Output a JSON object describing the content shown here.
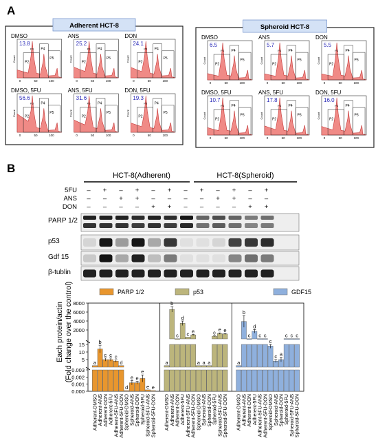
{
  "panel_a": {
    "letter": "A",
    "adherent_title": "Adherent HCT-8",
    "spheroid_title": "Spheroid HCT-8",
    "hist_axis": {
      "ylabel": "Count",
      "xticks": [
        "0",
        "50",
        "100"
      ],
      "gates": [
        "P2",
        "P3",
        "P4",
        "P5"
      ]
    },
    "adherent": [
      {
        "label": "DMSO",
        "value": "13.8"
      },
      {
        "label": "ANS",
        "value": "25.2"
      },
      {
        "label": "DON",
        "value": "24.1"
      },
      {
        "label": "DMSO, 5FU",
        "value": "56.6"
      },
      {
        "label": "ANS, 5FU",
        "value": "31.6"
      },
      {
        "label": "DON, 5FU",
        "value": "19.3"
      }
    ],
    "spheroid": [
      {
        "label": "DMSO",
        "value": "6.5"
      },
      {
        "label": "ANS",
        "value": "5.7"
      },
      {
        "label": "DON",
        "value": "5.5"
      },
      {
        "label": "DMSO, 5FU",
        "value": "10.7"
      },
      {
        "label": "ANS, 5FU",
        "value": "17.8"
      },
      {
        "label": "DON, 5FU",
        "value": "16.0"
      }
    ]
  },
  "panel_b": {
    "letter": "B",
    "group_adherent": "HCT-8(Adherent)",
    "group_spheroid": "HCT-8(Spheroid)",
    "treatments": [
      {
        "name": "5FU",
        "marks": [
          "–",
          "+",
          "–",
          "+",
          "–",
          "+",
          "–",
          "+",
          "–",
          "+",
          "–",
          "+"
        ]
      },
      {
        "name": "ANS",
        "marks": [
          "–",
          "–",
          "+",
          "+",
          "–",
          "–",
          "–",
          "–",
          "+",
          "+",
          "–",
          "–"
        ]
      },
      {
        "name": "DON",
        "marks": [
          "–",
          "–",
          "–",
          "–",
          "+",
          "+",
          "–",
          "–",
          "–",
          "–",
          "+",
          "+"
        ]
      }
    ],
    "blots": [
      {
        "label": "PARP 1/2"
      },
      {
        "label": "p53"
      },
      {
        "label": "Gdf 15"
      },
      {
        "label": "β-tublin"
      }
    ]
  },
  "chart_data": {
    "type": "bar",
    "ylabel": "Each protein/actin",
    "ylabel2": "(Fold change over the control)",
    "categories": [
      "Adherent-DMSO",
      "Adherent-ANS",
      "Adherent-DON",
      "Adherent-5FU",
      "Adherent-5FU-ANS",
      "Adherent-5FU-DON",
      "Spheroid-DMSO",
      "Spheroid-ANS",
      "Spheroid-DON",
      "Spheroid-5FU",
      "Spheroid-5FU-ANS",
      "Spheroid-5FU-DON"
    ],
    "axis_segments": {
      "upper": {
        "range": [
          0,
          8000
        ],
        "ticks": [
          "2000",
          "4000",
          "6000",
          "8000"
        ]
      },
      "middle": {
        "range": [
          0,
          15
        ],
        "ticks": [
          "5",
          "10",
          "15"
        ]
      },
      "lower": {
        "range": [
          0,
          0.003
        ],
        "ticks": [
          "0.000",
          "0.001",
          "0.002",
          "0.003"
        ]
      }
    },
    "series": [
      {
        "name": "PARP 1/2",
        "color": "#e8962e",
        "values": [
          1,
          12,
          5,
          5,
          4,
          1,
          0.0001,
          0.0012,
          0.0012,
          0.0018,
          0.0002,
          0.0001
        ],
        "errors": [
          0,
          2.5,
          1,
          1,
          0.8,
          0,
          0,
          0.0003,
          0.0002,
          0.0005,
          0,
          0
        ],
        "letters": [
          "a",
          "b",
          "c",
          "c",
          "c",
          "d",
          "d",
          "e",
          "e",
          "e",
          "e",
          "e"
        ]
      },
      {
        "name": "p53",
        "color": "#bcb57c",
        "values": [
          1,
          6600,
          50,
          3500,
          400,
          900,
          1,
          1,
          1,
          600,
          1200,
          1100
        ],
        "errors": [
          0,
          600,
          0,
          500,
          0,
          100,
          0,
          0,
          0,
          100,
          150,
          120
        ],
        "letters": [
          "a",
          "b",
          "c",
          "d",
          "c",
          "e",
          "a",
          "a",
          "a",
          "c",
          "e",
          "e"
        ]
      },
      {
        "name": "GDF15",
        "color": "#8fb0dd",
        "values": [
          1,
          3900,
          40,
          1700,
          60,
          60,
          14,
          4,
          5,
          60,
          60,
          60
        ],
        "errors": [
          0,
          1300,
          0,
          400,
          0,
          0,
          1.5,
          1,
          1.5,
          0,
          0,
          0
        ],
        "letters": [
          "a",
          "b",
          "c",
          "d",
          "c",
          "c",
          "c",
          "c",
          "a",
          "c",
          "c",
          "c"
        ]
      }
    ]
  }
}
